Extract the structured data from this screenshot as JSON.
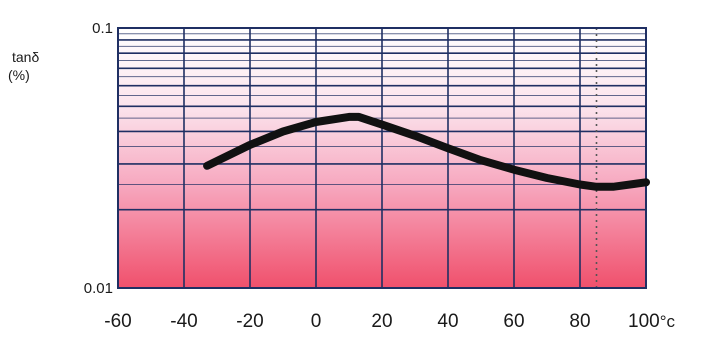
{
  "chart_data": {
    "type": "line",
    "title": "",
    "xlabel": "",
    "ylabel": "tanδ",
    "ylabel_unit": "(%)",
    "y_scale": "log",
    "ylim": [
      0.01,
      0.1
    ],
    "xlim": [
      -60,
      100
    ],
    "x_ticks": [
      -60,
      -40,
      -20,
      0,
      20,
      40,
      60,
      80,
      100
    ],
    "x_tick_labels": [
      "-60",
      "-40",
      "-20",
      "0",
      "20",
      "40",
      "60",
      "80",
      "100"
    ],
    "x_unit": "°c",
    "y_tick_labels": [
      "0.1",
      "0.01"
    ],
    "y_ticks": [
      0.1,
      0.01
    ],
    "grid": true,
    "reference_line": {
      "x": 85,
      "style": "dotted"
    },
    "series": [
      {
        "x": [
          -33,
          -20,
          -10,
          0,
          10,
          13,
          20,
          30,
          40,
          50,
          60,
          70,
          80,
          85,
          90,
          100
        ],
        "values": [
          0.0295,
          0.0355,
          0.04,
          0.0435,
          0.0455,
          0.0455,
          0.0425,
          0.0385,
          0.0345,
          0.031,
          0.0285,
          0.0265,
          0.025,
          0.0245,
          0.0245,
          0.0255
        ]
      }
    ],
    "colors": {
      "gradient_top": "#ffffff",
      "gradient_mid": "#f7bdd0",
      "gradient_bottom": "#f0506c",
      "grid": "#1f2f63",
      "line": "#111111"
    }
  }
}
